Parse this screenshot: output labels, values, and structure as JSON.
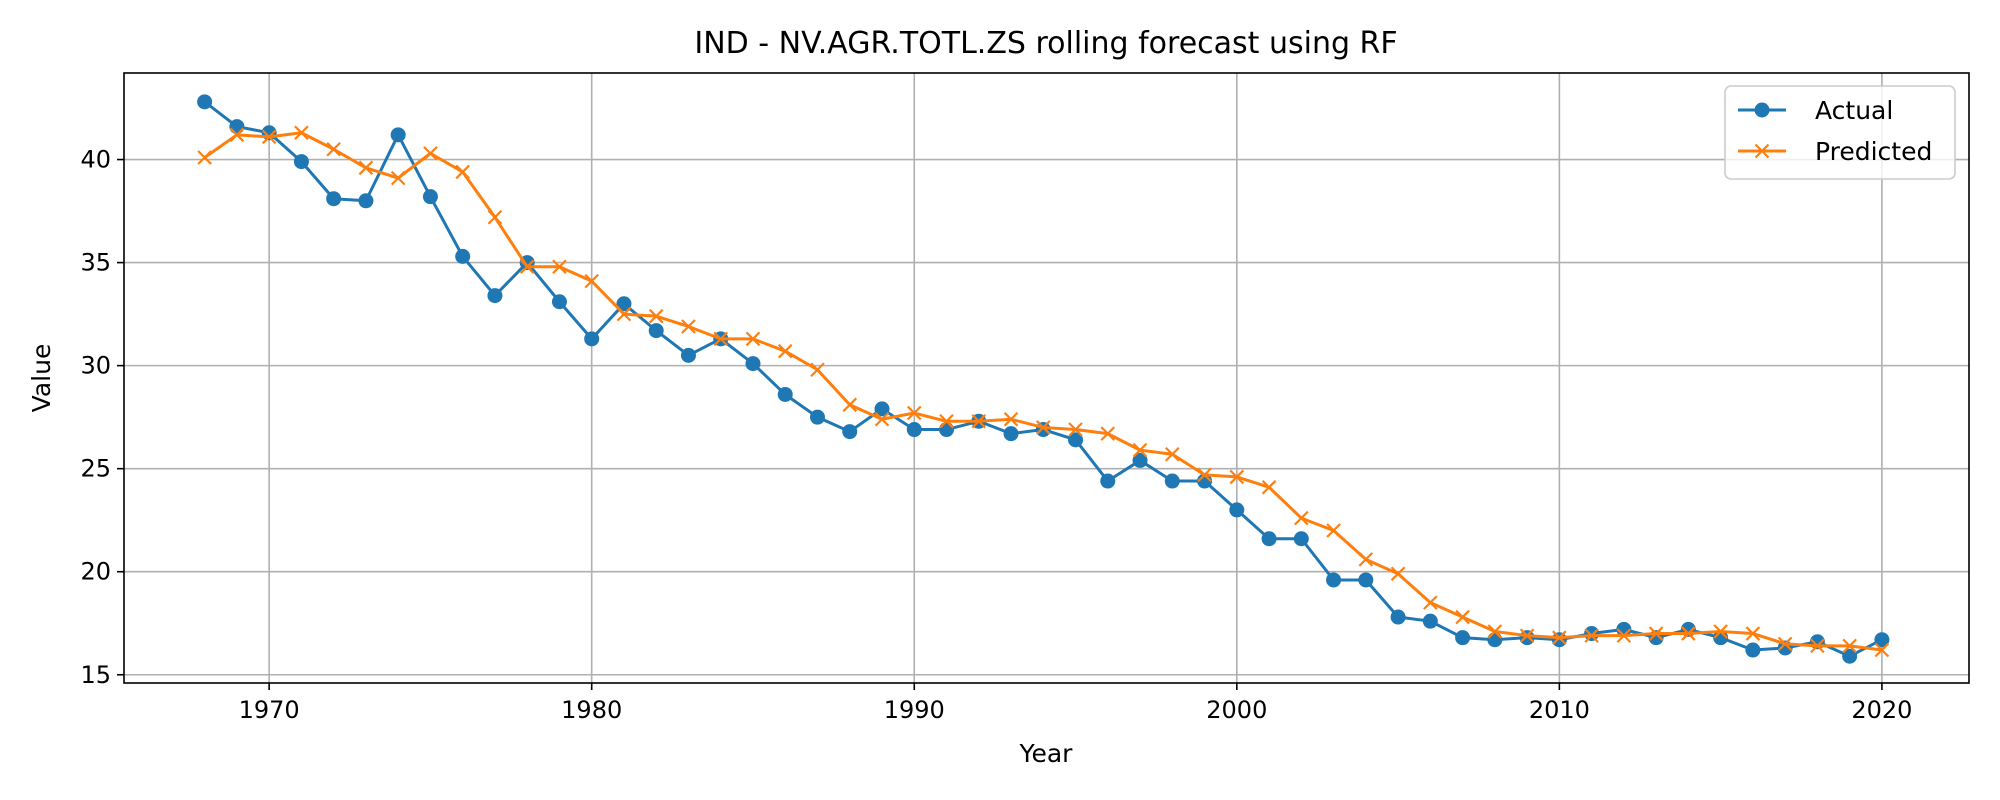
{
  "chart_data": {
    "type": "line",
    "title": "IND - NV.AGR.TOTL.ZS rolling forecast using RF",
    "xlabel": "Year",
    "ylabel": "Value",
    "xlim": [
      1965.5,
      2022.7
    ],
    "ylim": [
      14.6,
      44.2
    ],
    "xticks": [
      1970,
      1980,
      1990,
      2000,
      2010,
      2020
    ],
    "yticks": [
      15,
      20,
      25,
      30,
      35,
      40
    ],
    "grid": true,
    "legend_position": "upper-right",
    "x": [
      1968,
      1969,
      1970,
      1971,
      1972,
      1973,
      1974,
      1975,
      1976,
      1977,
      1978,
      1979,
      1980,
      1981,
      1982,
      1983,
      1984,
      1985,
      1986,
      1987,
      1988,
      1989,
      1990,
      1991,
      1992,
      1993,
      1994,
      1995,
      1996,
      1997,
      1998,
      1999,
      2000,
      2001,
      2002,
      2003,
      2004,
      2005,
      2006,
      2007,
      2008,
      2009,
      2010,
      2011,
      2012,
      2013,
      2014,
      2015,
      2016,
      2017,
      2018,
      2019,
      2020
    ],
    "series": [
      {
        "name": "Actual",
        "color": "#1f77b4",
        "marker": "circle",
        "values": [
          42.8,
          41.6,
          41.3,
          39.9,
          38.1,
          38.0,
          41.2,
          38.2,
          35.3,
          33.4,
          35.0,
          33.1,
          31.3,
          33.0,
          31.7,
          30.5,
          31.3,
          30.1,
          28.6,
          27.5,
          26.8,
          27.9,
          26.9,
          26.9,
          27.3,
          26.7,
          26.9,
          26.4,
          24.4,
          25.4,
          24.4,
          24.4,
          23.0,
          21.6,
          21.6,
          19.6,
          19.6,
          17.8,
          17.6,
          16.8,
          16.7,
          16.8,
          16.7,
          17.0,
          17.2,
          16.8,
          17.2,
          16.8,
          16.2,
          16.3,
          16.6,
          15.9,
          16.7
        ]
      },
      {
        "name": "Predicted",
        "color": "#ff7f0e",
        "marker": "x",
        "values": [
          40.1,
          41.2,
          41.1,
          41.3,
          40.5,
          39.6,
          39.1,
          40.3,
          39.4,
          37.2,
          34.8,
          34.8,
          34.1,
          32.5,
          32.4,
          31.9,
          31.3,
          31.3,
          30.7,
          29.8,
          28.1,
          27.4,
          27.7,
          27.3,
          27.3,
          27.4,
          27.0,
          26.9,
          26.7,
          25.9,
          25.7,
          24.7,
          24.6,
          24.1,
          22.6,
          22.0,
          20.6,
          19.9,
          18.5,
          17.8,
          17.1,
          16.9,
          16.8,
          16.9,
          16.9,
          17.0,
          17.0,
          17.1,
          17.0,
          16.5,
          16.4,
          16.4,
          16.2
        ]
      }
    ]
  }
}
